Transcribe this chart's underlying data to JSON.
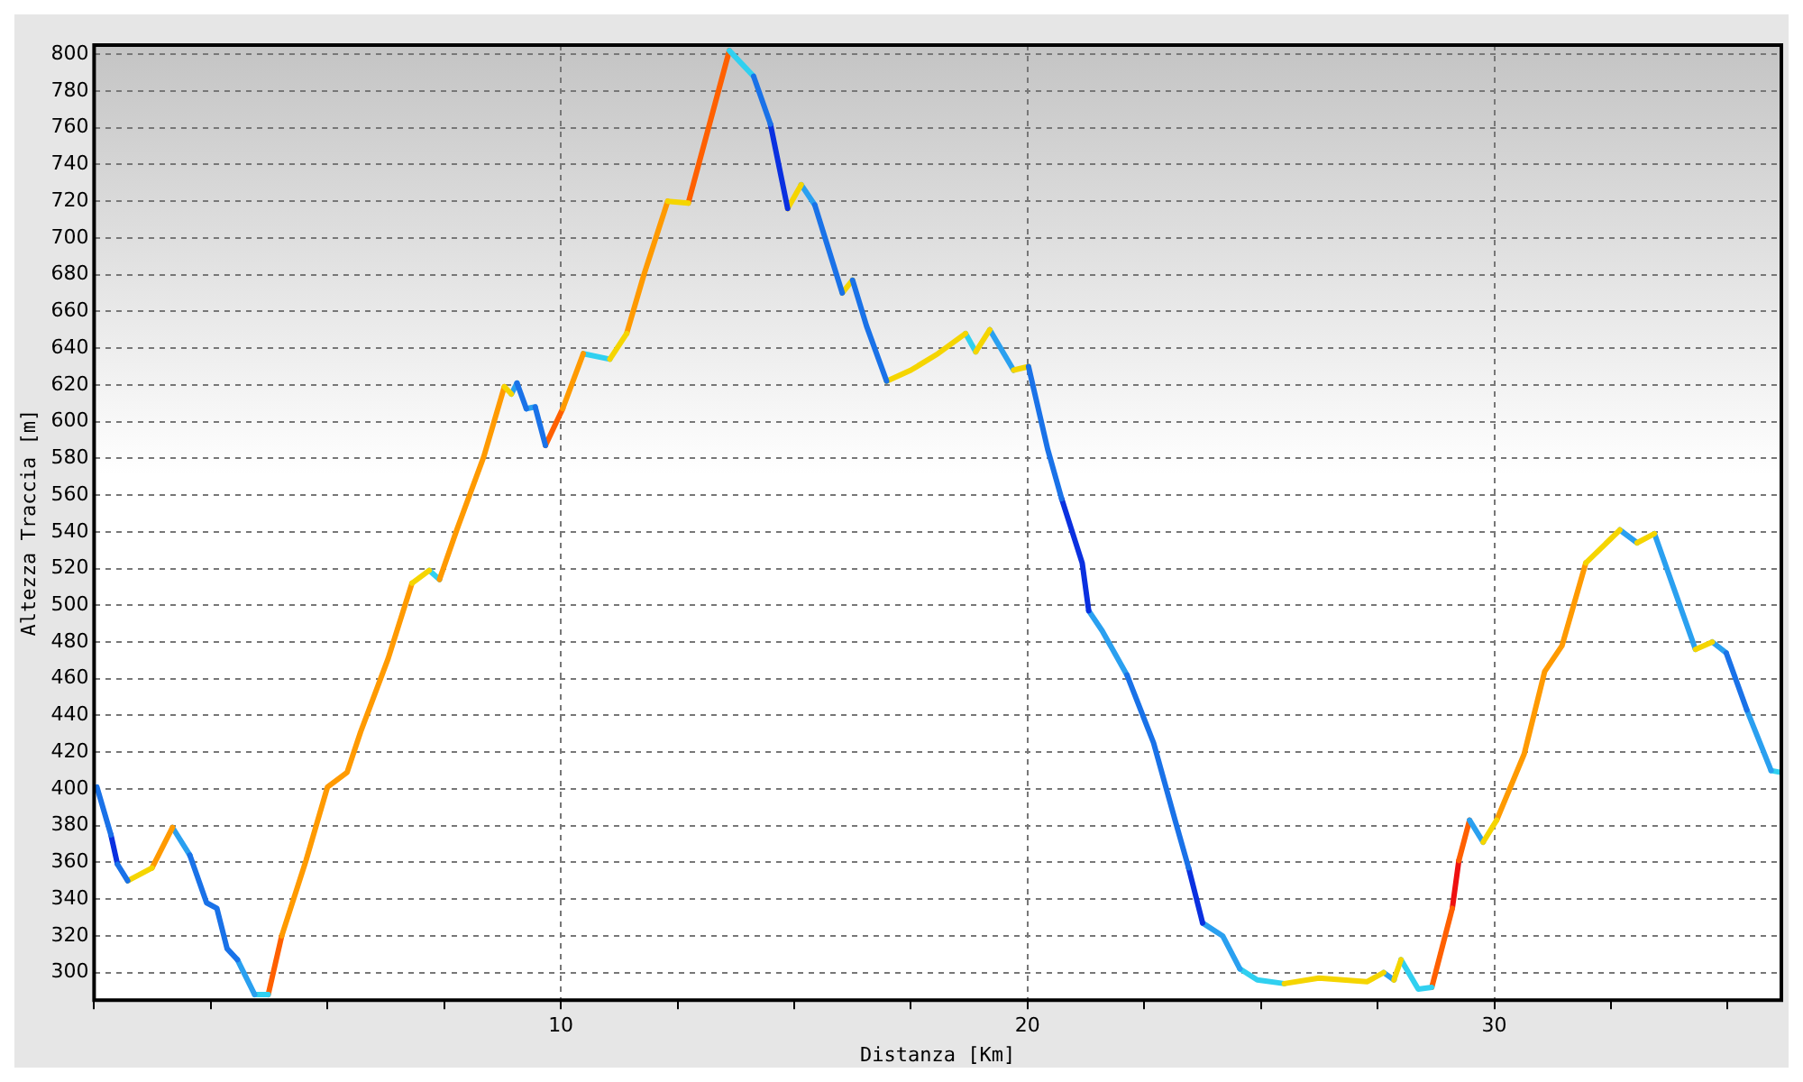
{
  "chart_data": {
    "type": "line",
    "xlabel": "Distanza [Km]",
    "ylabel": "Altezza Traccia [m]",
    "series": [
      {
        "color": "#1a72e8",
        "x": [
          0.06,
          0.36,
          null,
          0.5,
          0.72,
          null,
          2.05,
          2.41,
          2.63,
          2.85,
          3.07,
          null,
          9.06,
          9.26,
          null,
          9.45,
          9.67,
          null,
          14.13,
          14.49,
          null,
          15.44,
          16.03,
          null,
          16.25,
          16.55,
          16.98,
          null,
          20.02,
          20.43,
          20.73,
          null,
          22.13,
          22.7,
          23.16,
          23.45,
          null,
          34.97,
          35.41
        ],
        "values": [
          401,
          375,
          null,
          359,
          350,
          null,
          364,
          338,
          335,
          313,
          307,
          null,
          621,
          607,
          null,
          608,
          587,
          null,
          788,
          762,
          null,
          718,
          670,
          null,
          677,
          652,
          622,
          null,
          630,
          585,
          558,
          null,
          462,
          425,
          383,
          357,
          null,
          474,
          443
        ]
      },
      {
        "color": "#0a30e0",
        "x": [
          0.36,
          0.5,
          null,
          14.49,
          14.86,
          null,
          20.73,
          21.17,
          21.31,
          null,
          23.45,
          23.75
        ],
        "values": [
          375,
          359,
          null,
          762,
          716,
          null,
          558,
          523,
          497,
          null,
          357,
          327
        ]
      },
      {
        "color": "#f5d500",
        "x": [
          0.72,
          1.24,
          null,
          6.81,
          7.18,
          null,
          8.79,
          8.94,
          null,
          11.05,
          11.41,
          null,
          12.29,
          12.73,
          null,
          14.86,
          15.15,
          null,
          16.03,
          16.25,
          null,
          16.98,
          17.5,
          18.08,
          18.67,
          null,
          18.89,
          19.19,
          null,
          19.7,
          20.02,
          null,
          25.5,
          26.24,
          27.27,
          27.63,
          null,
          27.85,
          28.0,
          null,
          29.76,
          30.05,
          null,
          31.96,
          32.69,
          null,
          33.06,
          33.43,
          null,
          34.31,
          34.67
        ],
        "values": [
          350,
          357,
          null,
          512,
          519,
          null,
          619,
          615,
          null,
          634,
          648,
          null,
          720,
          719,
          null,
          716,
          729,
          null,
          670,
          677,
          null,
          622,
          628,
          637,
          648,
          null,
          638,
          650,
          null,
          628,
          630,
          null,
          294,
          297,
          295,
          300,
          null,
          296,
          307,
          null,
          371,
          383,
          null,
          523,
          541,
          null,
          534,
          539,
          null,
          476,
          480
        ]
      },
      {
        "color": "#ff9a00",
        "x": [
          1.24,
          1.68,
          null,
          4.02,
          4.54,
          5.0,
          5.42,
          5.71,
          6.3,
          6.81,
          null,
          7.4,
          7.77,
          8.35,
          8.79,
          null,
          10.04,
          10.48,
          null,
          11.41,
          11.78,
          12.29,
          null,
          30.05,
          30.64,
          31.08,
          31.45,
          31.96
        ],
        "values": [
          357,
          379,
          null,
          320,
          361,
          401,
          409,
          431,
          471,
          512,
          null,
          514,
          541,
          581,
          619,
          null,
          607,
          637,
          null,
          648,
          680,
          720,
          null,
          383,
          419,
          464,
          478,
          523
        ]
      },
      {
        "color": "#2aa0f0",
        "x": [
          1.68,
          2.05,
          null,
          3.07,
          3.44,
          null,
          8.94,
          9.06,
          null,
          9.26,
          9.45,
          null,
          15.15,
          15.44,
          null,
          19.19,
          19.7,
          null,
          21.31,
          21.6,
          22.13,
          null,
          23.75,
          24.18,
          24.55,
          null,
          27.63,
          27.85,
          null,
          29.47,
          29.76,
          null,
          32.69,
          33.06,
          null,
          33.43,
          34.31,
          null,
          34.67,
          34.97,
          null,
          35.41,
          35.93
        ],
        "values": [
          379,
          364,
          null,
          307,
          288,
          null,
          615,
          621,
          null,
          607,
          608,
          null,
          729,
          718,
          null,
          650,
          628,
          null,
          497,
          486,
          462,
          null,
          327,
          320,
          302,
          null,
          300,
          296,
          null,
          383,
          371,
          null,
          541,
          534,
          null,
          539,
          476,
          null,
          480,
          474,
          null,
          443,
          410
        ]
      },
      {
        "color": "#30d0f0",
        "x": [
          3.44,
          3.73,
          null,
          7.18,
          7.4,
          null,
          10.48,
          11.05,
          null,
          13.61,
          14.13,
          null,
          18.67,
          18.89,
          null,
          24.55,
          24.92,
          25.5,
          null,
          28.0,
          28.37,
          28.66,
          null,
          35.93,
          36.14
        ],
        "values": [
          288,
          288,
          null,
          519,
          514,
          null,
          637,
          634,
          null,
          802,
          788,
          null,
          648,
          638,
          null,
          302,
          296,
          294,
          null,
          307,
          291,
          292,
          null,
          410,
          409
        ]
      },
      {
        "color": "#ff6000",
        "x": [
          3.73,
          4.02,
          null,
          9.67,
          10.04,
          null,
          12.73,
          13.61,
          null,
          28.66,
          29.1,
          null,
          29.24,
          29.47
        ],
        "values": [
          288,
          320,
          null,
          587,
          607,
          null,
          719,
          802,
          null,
          292,
          335,
          null,
          361,
          383
        ]
      },
      {
        "color": "#ee1010",
        "x": [
          29.1,
          29.24
        ],
        "values": [
          335,
          361
        ]
      }
    ],
    "xlim": [
      0,
      36.15
    ],
    "ylim": [
      285,
      805
    ],
    "xticks": [
      {
        "value": 0,
        "label": null
      },
      {
        "value": 2.5,
        "label": null
      },
      {
        "value": 5,
        "label": null
      },
      {
        "value": 7.5,
        "label": null
      },
      10,
      {
        "value": 12.5,
        "label": null
      },
      {
        "value": 15,
        "label": null
      },
      {
        "value": 17.5,
        "label": null
      },
      20,
      {
        "value": 22.5,
        "label": null
      },
      {
        "value": 25,
        "label": null
      },
      {
        "value": 27.5,
        "label": null
      },
      30,
      {
        "value": 32.5,
        "label": null
      },
      {
        "value": 35,
        "label": null
      }
    ],
    "yticks": [
      300,
      320,
      340,
      360,
      380,
      400,
      420,
      440,
      460,
      480,
      500,
      520,
      540,
      560,
      580,
      600,
      620,
      640,
      660,
      680,
      700,
      720,
      740,
      760,
      780,
      800
    ],
    "grid": true
  }
}
